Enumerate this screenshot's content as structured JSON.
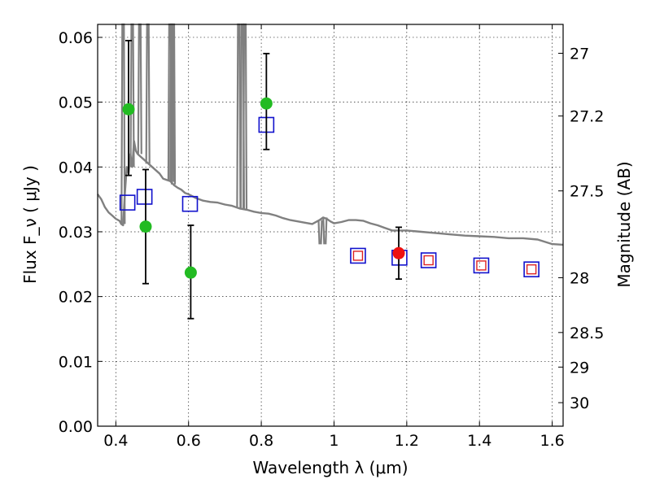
{
  "chart_data": {
    "type": "scatter",
    "xlabel": "Wavelength  λ (μm)",
    "ylabel": "Flux  F_ν  ( μJy )",
    "ylabel_right": "Magnitude (AB)",
    "xlim": [
      0.35,
      1.63
    ],
    "ylim": [
      0.0,
      0.062
    ],
    "grid": true,
    "x_ticks": [
      {
        "value": 0.4,
        "label": "0.4"
      },
      {
        "value": 0.6,
        "label": "0.6"
      },
      {
        "value": 0.8,
        "label": "0.8"
      },
      {
        "value": 1.0,
        "label": "1"
      },
      {
        "value": 1.2,
        "label": "1.2"
      },
      {
        "value": 1.4,
        "label": "1.4"
      },
      {
        "value": 1.6,
        "label": "1.6"
      }
    ],
    "y_ticks": [
      {
        "value": 0.0,
        "label": "0.00"
      },
      {
        "value": 0.01,
        "label": "0.01"
      },
      {
        "value": 0.02,
        "label": "0.02"
      },
      {
        "value": 0.03,
        "label": "0.03"
      },
      {
        "value": 0.04,
        "label": "0.04"
      },
      {
        "value": 0.05,
        "label": "0.05"
      },
      {
        "value": 0.06,
        "label": "0.06"
      }
    ],
    "right_ticks": [
      {
        "mag": 27.0,
        "label": "27"
      },
      {
        "mag": 27.2,
        "label": "27.2"
      },
      {
        "mag": 27.5,
        "label": "27.5"
      },
      {
        "mag": 28.0,
        "label": "28"
      },
      {
        "mag": 28.5,
        "label": "28.5"
      },
      {
        "mag": 29.0,
        "label": "29"
      },
      {
        "mag": 30.0,
        "label": "30"
      }
    ],
    "series": [
      {
        "name": "observed_optical",
        "marker": "circle",
        "color": "#22bb22",
        "points": [
          {
            "x": 0.435,
            "y": 0.0489,
            "ylo": 0.0387,
            "yhi": 0.0595
          },
          {
            "x": 0.482,
            "y": 0.0308,
            "ylo": 0.022,
            "yhi": 0.0396
          },
          {
            "x": 0.606,
            "y": 0.0237,
            "ylo": 0.0166,
            "yhi": 0.031
          },
          {
            "x": 0.814,
            "y": 0.0498,
            "ylo": 0.0427,
            "yhi": 0.0575
          }
        ]
      },
      {
        "name": "observed_nir",
        "marker": "circle",
        "color": "#ee1111",
        "points": [
          {
            "x": 1.178,
            "y": 0.0267,
            "ylo": 0.0227,
            "yhi": 0.0307
          }
        ]
      },
      {
        "name": "model_photometry",
        "marker": "open-square",
        "color": "#1111cc",
        "points": [
          {
            "x": 0.432,
            "y": 0.0345
          },
          {
            "x": 0.479,
            "y": 0.0354
          },
          {
            "x": 0.604,
            "y": 0.0343
          },
          {
            "x": 0.814,
            "y": 0.0465
          },
          {
            "x": 1.066,
            "y": 0.0263
          },
          {
            "x": 1.18,
            "y": 0.026
          },
          {
            "x": 1.26,
            "y": 0.0256
          },
          {
            "x": 1.405,
            "y": 0.0248
          },
          {
            "x": 1.543,
            "y": 0.0242
          }
        ]
      },
      {
        "name": "model_photometry_nir",
        "marker": "open-square-small",
        "color": "#dd2222",
        "points": [
          {
            "x": 1.066,
            "y": 0.0263
          },
          {
            "x": 1.26,
            "y": 0.0256
          },
          {
            "x": 1.405,
            "y": 0.0248
          },
          {
            "x": 1.543,
            "y": 0.0242
          }
        ]
      }
    ],
    "spectrum": {
      "name": "model_spectrum",
      "color": "#808080",
      "continuum": [
        [
          0.35,
          0.0358
        ],
        [
          0.36,
          0.035
        ],
        [
          0.37,
          0.0338
        ],
        [
          0.38,
          0.033
        ],
        [
          0.39,
          0.0325
        ],
        [
          0.4,
          0.032
        ],
        [
          0.41,
          0.0317
        ],
        [
          0.415,
          0.0312
        ],
        [
          0.42,
          0.031
        ],
        [
          0.425,
          0.036
        ],
        [
          0.43,
          0.04
        ],
        [
          0.435,
          0.039
        ],
        [
          0.44,
          0.042
        ],
        [
          0.445,
          0.04
        ],
        [
          0.45,
          0.044
        ],
        [
          0.455,
          0.0425
        ],
        [
          0.46,
          0.042
        ],
        [
          0.47,
          0.0415
        ],
        [
          0.48,
          0.041
        ],
        [
          0.49,
          0.0405
        ],
        [
          0.5,
          0.04
        ],
        [
          0.51,
          0.0395
        ],
        [
          0.52,
          0.039
        ],
        [
          0.53,
          0.0382
        ],
        [
          0.54,
          0.038
        ],
        [
          0.55,
          0.0378
        ],
        [
          0.56,
          0.0372
        ],
        [
          0.57,
          0.0368
        ],
        [
          0.58,
          0.0365
        ],
        [
          0.59,
          0.036
        ],
        [
          0.6,
          0.0358
        ],
        [
          0.62,
          0.0352
        ],
        [
          0.64,
          0.0348
        ],
        [
          0.66,
          0.0346
        ],
        [
          0.68,
          0.0345
        ],
        [
          0.7,
          0.0342
        ],
        [
          0.72,
          0.034
        ],
        [
          0.74,
          0.0336
        ],
        [
          0.76,
          0.0334
        ],
        [
          0.78,
          0.0331
        ],
        [
          0.8,
          0.0329
        ],
        [
          0.82,
          0.0328
        ],
        [
          0.84,
          0.0325
        ],
        [
          0.86,
          0.0321
        ],
        [
          0.88,
          0.0318
        ],
        [
          0.9,
          0.0316
        ],
        [
          0.92,
          0.0314
        ],
        [
          0.94,
          0.0312
        ],
        [
          0.96,
          0.0318
        ],
        [
          0.97,
          0.0322
        ],
        [
          0.98,
          0.032
        ],
        [
          0.99,
          0.0316
        ],
        [
          1.0,
          0.0313
        ],
        [
          1.02,
          0.0315
        ],
        [
          1.04,
          0.0318
        ],
        [
          1.06,
          0.0318
        ],
        [
          1.08,
          0.0317
        ],
        [
          1.1,
          0.0313
        ],
        [
          1.12,
          0.031
        ],
        [
          1.14,
          0.0306
        ],
        [
          1.16,
          0.0302
        ],
        [
          1.18,
          0.0302
        ],
        [
          1.2,
          0.0302
        ],
        [
          1.24,
          0.03
        ],
        [
          1.28,
          0.0298
        ],
        [
          1.32,
          0.0296
        ],
        [
          1.36,
          0.0294
        ],
        [
          1.4,
          0.0293
        ],
        [
          1.44,
          0.0292
        ],
        [
          1.48,
          0.029
        ],
        [
          1.52,
          0.029
        ],
        [
          1.56,
          0.0288
        ],
        [
          1.6,
          0.0281
        ],
        [
          1.63,
          0.028
        ]
      ],
      "emission_lines": [
        {
          "x": 0.42,
          "base": 0.0312,
          "peak": 0.062
        },
        {
          "x": 0.445,
          "base": 0.04,
          "peak": 0.062
        },
        {
          "x": 0.466,
          "base": 0.042,
          "peak": 0.062
        },
        {
          "x": 0.488,
          "base": 0.0405,
          "peak": 0.062
        },
        {
          "x": 0.549,
          "base": 0.0379,
          "peak": 0.062
        },
        {
          "x": 0.554,
          "base": 0.0377,
          "peak": 0.062
        },
        {
          "x": 0.558,
          "base": 0.0373,
          "peak": 0.062
        },
        {
          "x": 0.738,
          "base": 0.0337,
          "peak": 0.062
        },
        {
          "x": 0.748,
          "base": 0.0335,
          "peak": 0.062
        },
        {
          "x": 0.755,
          "base": 0.0334,
          "peak": 0.062
        }
      ],
      "absorption_lines": [
        {
          "x": 0.962,
          "base": 0.0318,
          "depth": 0.0282
        },
        {
          "x": 0.975,
          "base": 0.0322,
          "depth": 0.0282
        }
      ]
    }
  }
}
